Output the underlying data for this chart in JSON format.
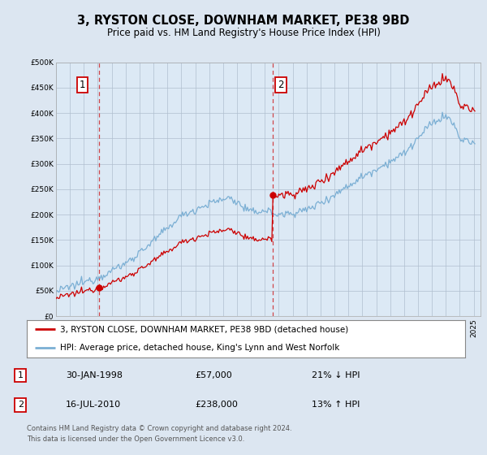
{
  "title": "3, RYSTON CLOSE, DOWNHAM MARKET, PE38 9BD",
  "subtitle": "Price paid vs. HM Land Registry's House Price Index (HPI)",
  "legend_line1": "3, RYSTON CLOSE, DOWNHAM MARKET, PE38 9BD (detached house)",
  "legend_line2": "HPI: Average price, detached house, King's Lynn and West Norfolk",
  "annotation1_date": "30-JAN-1998",
  "annotation1_price": "£57,000",
  "annotation1_hpi": "21% ↓ HPI",
  "annotation2_date": "16-JUL-2010",
  "annotation2_price": "£238,000",
  "annotation2_hpi": "13% ↑ HPI",
  "footer": "Contains HM Land Registry data © Crown copyright and database right 2024.\nThis data is licensed under the Open Government Licence v3.0.",
  "sale1_year": 1998.08,
  "sale1_price": 57000,
  "sale2_year": 2010.54,
  "sale2_price": 238000,
  "hpi_color": "#7bafd4",
  "price_color": "#cc0000",
  "background_color": "#dce6f1",
  "chart_bg_color": "#dce9f5",
  "plot_bg_color": "#ffffff",
  "ylim": [
    0,
    500000
  ],
  "xlim_start": 1995,
  "xlim_end": 2025.5
}
